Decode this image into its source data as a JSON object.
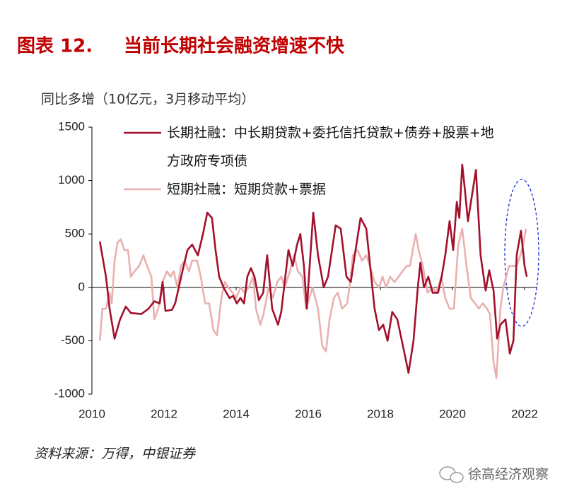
{
  "chart_data": {
    "type": "line",
    "title": "图表 12.",
    "subtitle": "当前长期社会融资增速不快",
    "y_label": "同比多增（10亿元，3月移动平均）",
    "source": "资料来源：万得，中银证券",
    "watermark": "徐高经济观察",
    "xlim": [
      2010,
      2022.35
    ],
    "xticks": [
      2010,
      2012,
      2014,
      2016,
      2018,
      2020,
      2022
    ],
    "ylim": [
      -1000,
      1500
    ],
    "yticks": [
      1500,
      1000,
      500,
      0,
      -500,
      -1000
    ],
    "grid": false,
    "legend": "top",
    "series": [
      {
        "name": "长期社融：中长期贷款+委托信托贷款+债券+股票+地方政府专项债",
        "color": "#a3102b",
        "x": [
          2010.22,
          2010.39,
          2010.49,
          2010.63,
          2010.78,
          2010.94,
          2011.08,
          2011.37,
          2011.57,
          2011.73,
          2011.88,
          2011.96,
          2012.04,
          2012.22,
          2012.31,
          2012.51,
          2012.65,
          2012.78,
          2012.94,
          2013.08,
          2013.2,
          2013.33,
          2013.43,
          2013.53,
          2013.65,
          2013.73,
          2013.82,
          2013.92,
          2014.02,
          2014.12,
          2014.22,
          2014.31,
          2014.41,
          2014.51,
          2014.63,
          2014.75,
          2014.86,
          2015.0,
          2015.16,
          2015.25,
          2015.45,
          2015.57,
          2015.69,
          2015.78,
          2015.88,
          2015.96,
          2016.04,
          2016.14,
          2016.27,
          2016.43,
          2016.55,
          2016.76,
          2016.9,
          2017.06,
          2017.18,
          2017.29,
          2017.45,
          2017.61,
          2017.84,
          2017.96,
          2018.08,
          2018.2,
          2018.33,
          2018.47,
          2018.67,
          2018.78,
          2018.92,
          2019.04,
          2019.11,
          2019.21,
          2019.33,
          2019.45,
          2019.6,
          2019.7,
          2019.8,
          2019.92,
          2020.02,
          2020.12,
          2020.19,
          2020.27,
          2020.35,
          2020.43,
          2020.65,
          2020.78,
          2020.92,
          2021.02,
          2021.14,
          2021.24,
          2021.33,
          2021.47,
          2021.59,
          2021.69,
          2021.78,
          2021.9,
          2022.0,
          2022.06
        ],
        "values": [
          430,
          100,
          -200,
          -480,
          -300,
          -180,
          -240,
          -250,
          -200,
          -130,
          -150,
          50,
          -220,
          -210,
          -150,
          150,
          350,
          400,
          300,
          500,
          700,
          650,
          350,
          100,
          0,
          -50,
          -100,
          -80,
          -150,
          -100,
          -150,
          100,
          180,
          100,
          -120,
          -50,
          300,
          -200,
          -350,
          -230,
          350,
          200,
          400,
          500,
          200,
          -200,
          200,
          700,
          300,
          0,
          100,
          580,
          550,
          100,
          50,
          300,
          650,
          550,
          -200,
          -400,
          -350,
          -500,
          -230,
          -300,
          -620,
          -800,
          -500,
          0,
          230,
          0,
          100,
          -50,
          -50,
          100,
          300,
          620,
          350,
          800,
          650,
          1150,
          900,
          620,
          1100,
          300,
          -30,
          160,
          -30,
          -480,
          -350,
          -300,
          -620,
          -500,
          300,
          530,
          200,
          100
        ]
      },
      {
        "name": "短期社融：短期贷款+票据",
        "color": "#eab0b0",
        "x": [
          2010.22,
          2010.29,
          2010.39,
          2010.49,
          2010.55,
          2010.63,
          2010.71,
          2010.8,
          2010.9,
          2011.0,
          2011.08,
          2011.18,
          2011.31,
          2011.43,
          2011.53,
          2011.65,
          2011.73,
          2011.84,
          2011.96,
          2012.08,
          2012.18,
          2012.27,
          2012.37,
          2012.47,
          2012.57,
          2012.69,
          2012.78,
          2012.92,
          2013.02,
          2013.14,
          2013.25,
          2013.37,
          2013.47,
          2013.59,
          2013.69,
          2013.78,
          2013.9,
          2014.0,
          2014.12,
          2014.24,
          2014.35,
          2014.47,
          2014.55,
          2014.67,
          2014.76,
          2014.9,
          2015.02,
          2015.14,
          2015.25,
          2015.35,
          2015.49,
          2015.61,
          2015.71,
          2015.84,
          2015.94,
          2016.12,
          2016.27,
          2016.39,
          2016.49,
          2016.59,
          2016.71,
          2016.82,
          2016.94,
          2017.08,
          2017.16,
          2017.24,
          2017.37,
          2017.49,
          2017.61,
          2017.71,
          2017.84,
          2017.96,
          2018.06,
          2018.16,
          2018.27,
          2018.39,
          2018.51,
          2018.61,
          2018.73,
          2018.82,
          2018.98,
          2019.06,
          2019.18,
          2019.31,
          2019.45,
          2019.55,
          2019.69,
          2019.8,
          2019.92,
          2020.04,
          2020.16,
          2020.27,
          2020.39,
          2020.51,
          2020.63,
          2020.73,
          2020.84,
          2020.96,
          2021.04,
          2021.14,
          2021.22,
          2021.33,
          2021.41,
          2021.49,
          2021.57,
          2021.69,
          2021.78,
          2021.88,
          2021.96,
          2022.04
        ],
        "values": [
          -500,
          -200,
          -200,
          -50,
          -150,
          250,
          420,
          450,
          350,
          350,
          100,
          150,
          200,
          300,
          200,
          100,
          -300,
          -200,
          50,
          150,
          100,
          150,
          0,
          200,
          250,
          150,
          250,
          250,
          100,
          -150,
          -150,
          -400,
          -450,
          -100,
          50,
          0,
          -50,
          -100,
          0,
          -50,
          0,
          100,
          -200,
          -350,
          -250,
          0,
          -100,
          50,
          100,
          0,
          150,
          300,
          150,
          100,
          -200,
          0,
          -200,
          -550,
          -600,
          -300,
          -100,
          -50,
          -200,
          -150,
          50,
          300,
          350,
          250,
          300,
          200,
          50,
          0,
          100,
          0,
          100,
          50,
          100,
          150,
          200,
          200,
          500,
          350,
          200,
          -50,
          0,
          -50,
          100,
          -100,
          -200,
          -200,
          400,
          550,
          200,
          -100,
          -150,
          -200,
          -150,
          -200,
          -250,
          -700,
          -850,
          -200,
          0,
          100,
          200,
          200,
          200,
          300,
          400,
          550
        ]
      }
    ]
  }
}
